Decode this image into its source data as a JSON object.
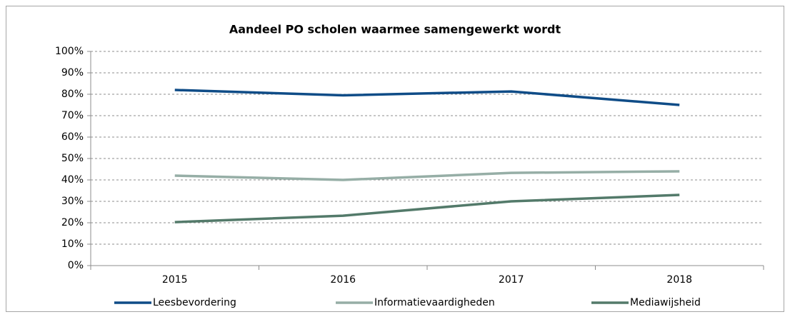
{
  "chart_data": {
    "type": "line",
    "title": "Aandeel PO scholen waarmee samengewerkt wordt",
    "categories": [
      "2015",
      "2016",
      "2017",
      "2018"
    ],
    "series": [
      {
        "name": "Leesbevordering",
        "color": "#0f4c87",
        "values": [
          82,
          79.5,
          81.3,
          75
        ]
      },
      {
        "name": "Informatievaardigheden",
        "color": "#96aea6",
        "values": [
          42,
          40,
          43.3,
          44
        ]
      },
      {
        "name": "Mediawijsheid",
        "color": "#537a6a",
        "values": [
          20.3,
          23.3,
          30,
          33
        ]
      }
    ],
    "ylim": [
      0,
      100
    ],
    "yticks": [
      {
        "value": 0,
        "label": "0%"
      },
      {
        "value": 10,
        "label": "10%"
      },
      {
        "value": 20,
        "label": "20%"
      },
      {
        "value": 30,
        "label": "30%"
      },
      {
        "value": 40,
        "label": "40%"
      },
      {
        "value": 50,
        "label": "50%"
      },
      {
        "value": 60,
        "label": "60%"
      },
      {
        "value": 70,
        "label": "70%"
      },
      {
        "value": 80,
        "label": "80%"
      },
      {
        "value": 90,
        "label": "90%"
      },
      {
        "value": 100,
        "label": "100%"
      }
    ],
    "grid": true,
    "legend": "bottom"
  }
}
